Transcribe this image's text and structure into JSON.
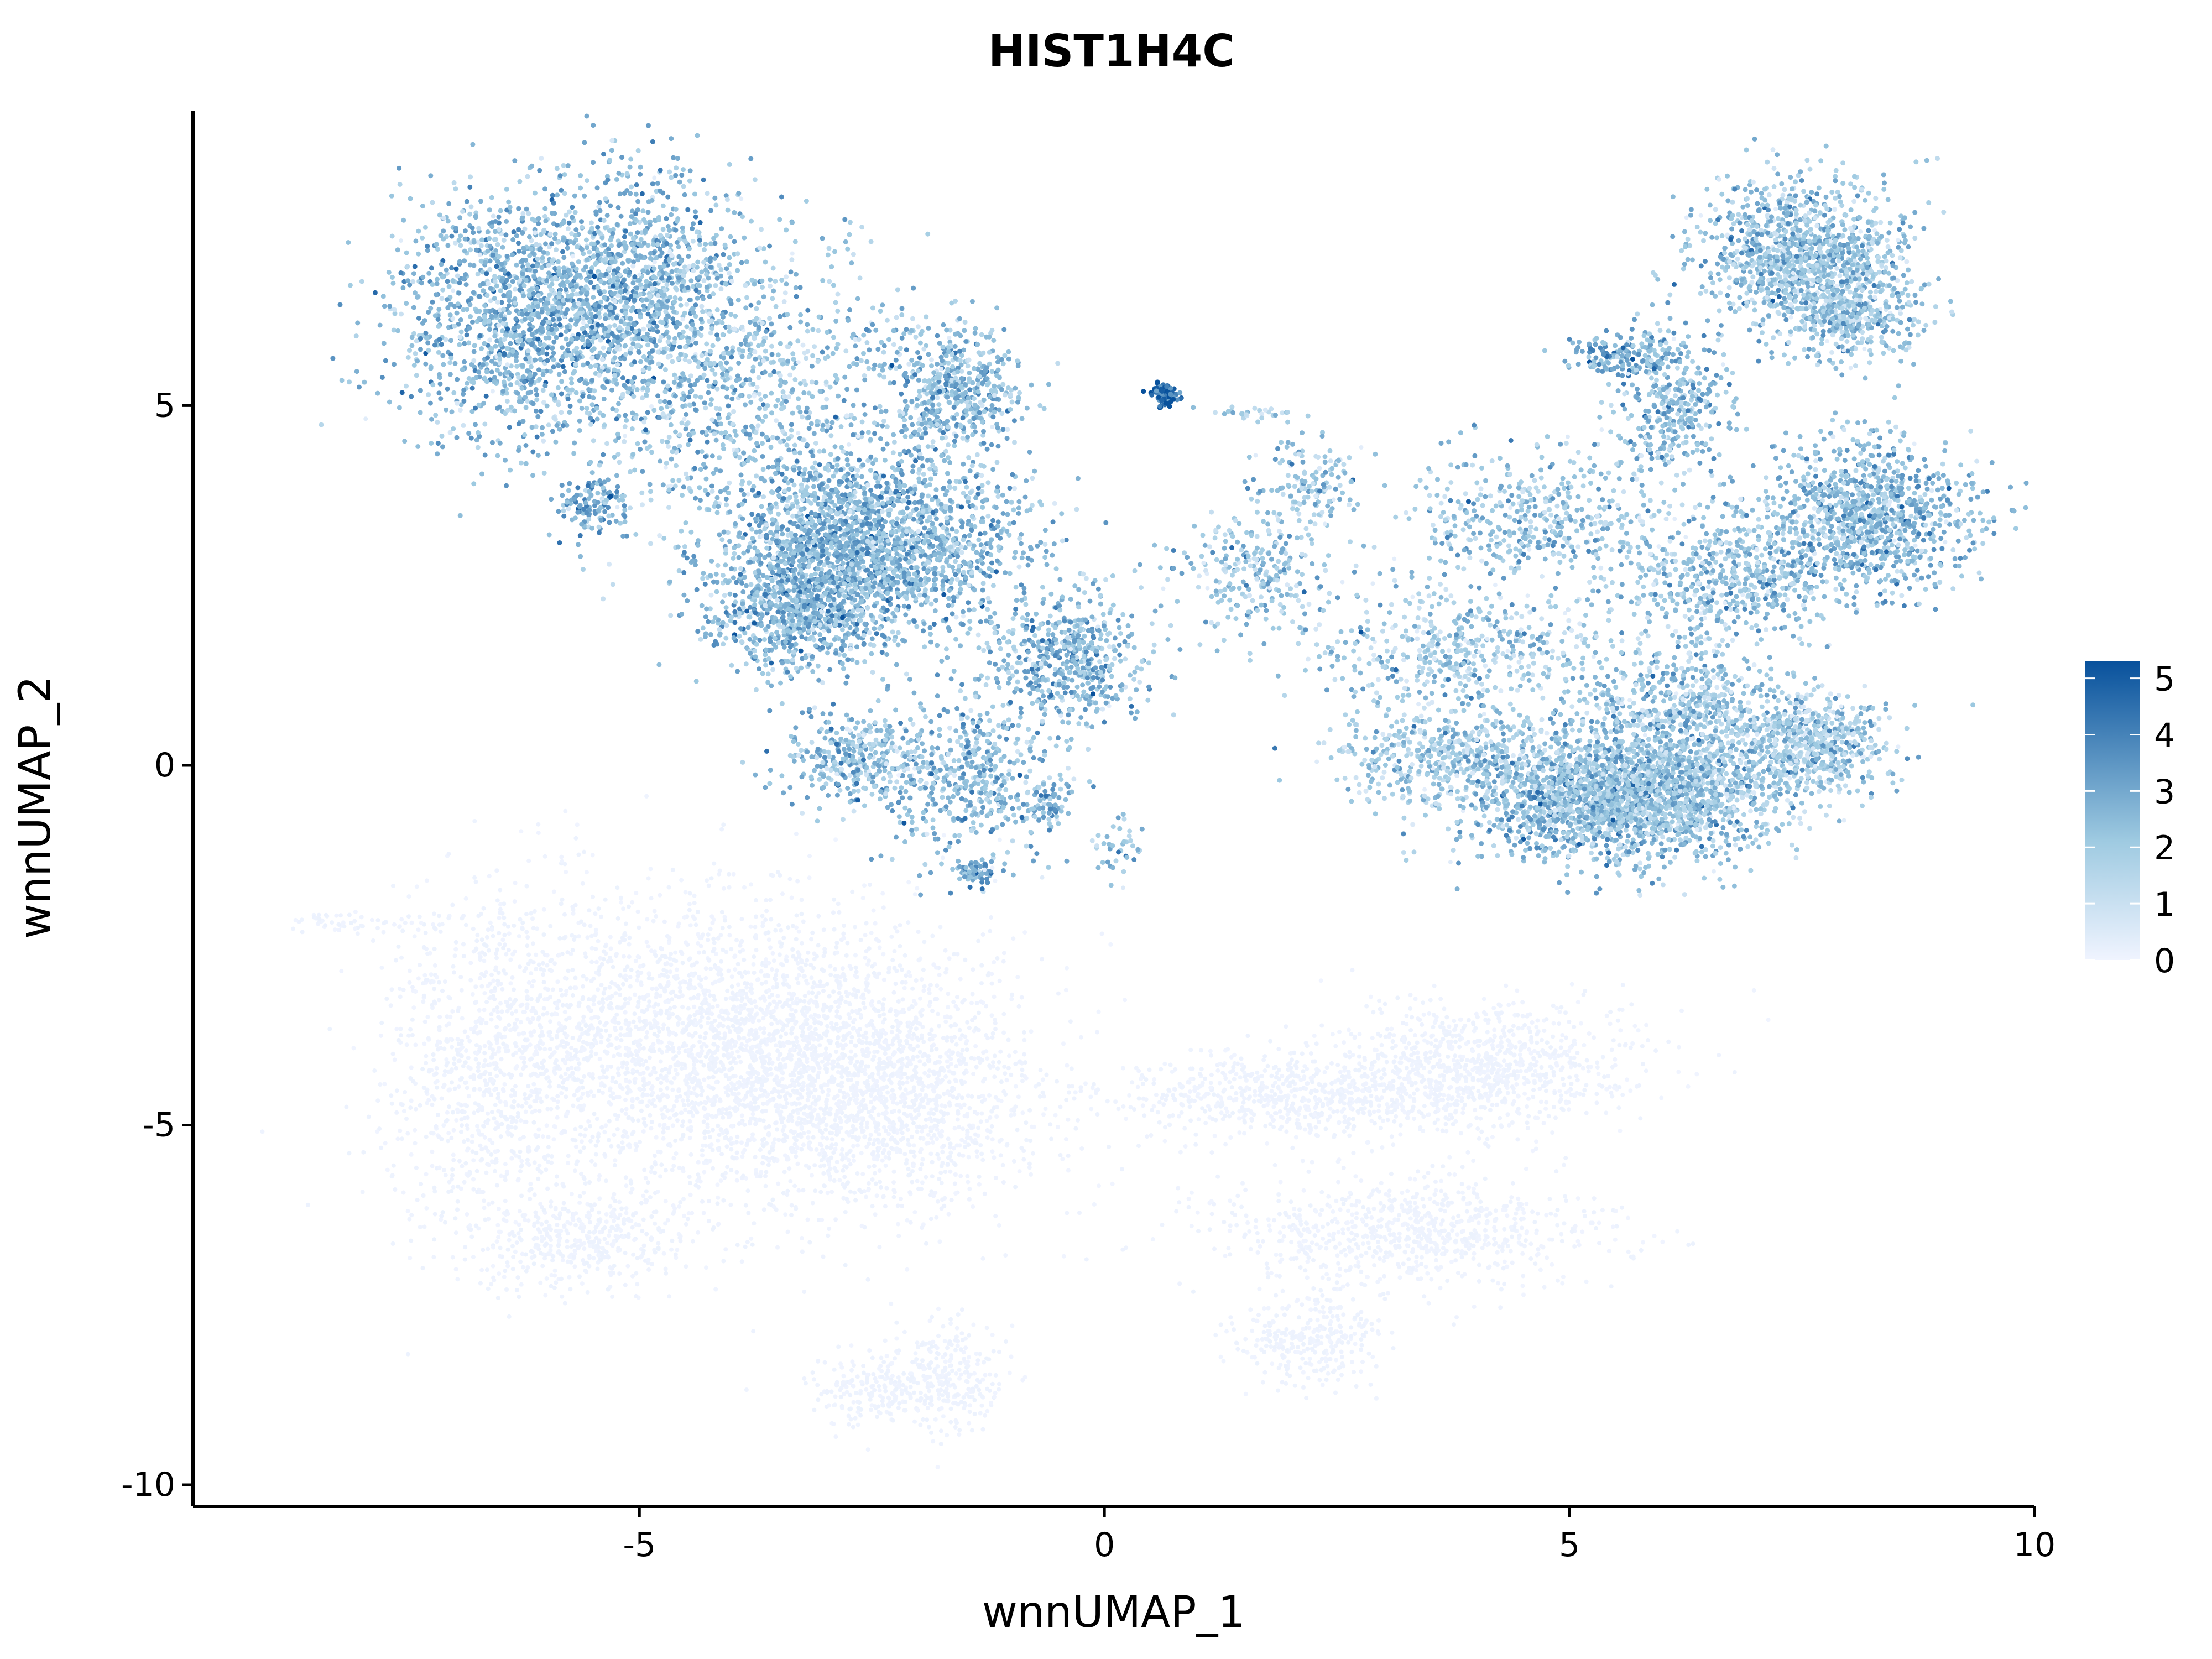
{
  "chart_data": {
    "type": "scatter",
    "title": "HIST1H4C",
    "xlabel": "wnnUMAP_1",
    "ylabel": "wnnUMAP_2",
    "xlim": [
      -9.8,
      10
    ],
    "ylim": [
      -10.3,
      9.1
    ],
    "xticks": [
      -5,
      0,
      5,
      10
    ],
    "xtick_labels": [
      "-5",
      "0",
      "5",
      "10"
    ],
    "yticks": [
      -10,
      -5,
      0,
      5
    ],
    "ytick_labels": [
      "-10",
      "-5",
      "0",
      "5"
    ],
    "grid": false,
    "legend": {
      "placement": "right",
      "type": "colorbar",
      "ticks": [
        0,
        1,
        2,
        3,
        4,
        5
      ],
      "tick_labels": [
        "0",
        "1",
        "2",
        "3",
        "4",
        "5"
      ],
      "min": 0,
      "max": 5.3
    },
    "colors": {
      "low": "#f0f4ff",
      "mid": "#9ecae1",
      "high": "#08519c"
    },
    "clusters": [
      {
        "cx": -6.2,
        "cy": 6.3,
        "sx": 0.75,
        "sy": 0.85,
        "n": 1500,
        "expr": 2.6
      },
      {
        "cx": -4.9,
        "cy": 6.6,
        "sx": 0.55,
        "sy": 0.8,
        "n": 900,
        "expr": 2.5
      },
      {
        "cx": -4.4,
        "cy": 4.8,
        "sx": 0.7,
        "sy": 0.9,
        "n": 350,
        "expr": 2.2
      },
      {
        "cx": -5.5,
        "cy": 3.6,
        "sx": 0.18,
        "sy": 0.2,
        "n": 120,
        "expr": 3.0
      },
      {
        "cx": -3.4,
        "cy": 5.4,
        "sx": 0.8,
        "sy": 0.9,
        "n": 500,
        "expr": 2.1
      },
      {
        "cx": -2.7,
        "cy": 3.1,
        "sx": 0.6,
        "sy": 0.65,
        "n": 1600,
        "expr": 2.7
      },
      {
        "cx": -3.4,
        "cy": 2.2,
        "sx": 0.45,
        "sy": 0.5,
        "n": 700,
        "expr": 2.6
      },
      {
        "cx": -1.6,
        "cy": 5.2,
        "sx": 0.35,
        "sy": 0.45,
        "n": 500,
        "expr": 2.4
      },
      {
        "cx": -1.7,
        "cy": 3.0,
        "sx": 0.5,
        "sy": 0.6,
        "n": 450,
        "expr": 2.4
      },
      {
        "cx": -2.7,
        "cy": 0.1,
        "sx": 0.35,
        "sy": 0.3,
        "n": 300,
        "expr": 2.4
      },
      {
        "cx": -1.5,
        "cy": -0.2,
        "sx": 0.5,
        "sy": 0.55,
        "n": 500,
        "expr": 2.4
      },
      {
        "cx": -1.4,
        "cy": -1.5,
        "sx": 0.1,
        "sy": 0.1,
        "n": 60,
        "expr": 3.0
      },
      {
        "cx": -0.4,
        "cy": 1.5,
        "sx": 0.45,
        "sy": 0.45,
        "n": 550,
        "expr": 2.5
      },
      {
        "cx": -0.6,
        "cy": -0.5,
        "sx": 0.12,
        "sy": 0.15,
        "n": 60,
        "expr": 2.6
      },
      {
        "cx": 0.15,
        "cy": -1.1,
        "sx": 0.15,
        "sy": 0.2,
        "n": 40,
        "expr": 2.4
      },
      {
        "cx": 0.65,
        "cy": 5.15,
        "sx": 0.08,
        "sy": 0.08,
        "n": 80,
        "expr": 4.6
      },
      {
        "cx": 1.5,
        "cy": 4.9,
        "sx": 0.25,
        "sy": 0.05,
        "n": 30,
        "expr": 1.6
      },
      {
        "cx": 1.6,
        "cy": 2.7,
        "sx": 0.4,
        "sy": 0.4,
        "n": 250,
        "expr": 2.1
      },
      {
        "cx": 2.2,
        "cy": 3.9,
        "sx": 0.3,
        "sy": 0.3,
        "n": 150,
        "expr": 2.1
      },
      {
        "cx": 7.5,
        "cy": 7.1,
        "sx": 0.55,
        "sy": 0.5,
        "n": 1100,
        "expr": 2.2
      },
      {
        "cx": 8.0,
        "cy": 6.3,
        "sx": 0.4,
        "sy": 0.35,
        "n": 400,
        "expr": 2.1
      },
      {
        "cx": 5.6,
        "cy": 5.7,
        "sx": 0.3,
        "sy": 0.15,
        "n": 150,
        "expr": 2.8
      },
      {
        "cx": 6.1,
        "cy": 5.0,
        "sx": 0.3,
        "sy": 0.5,
        "n": 350,
        "expr": 2.5
      },
      {
        "cx": 8.2,
        "cy": 3.5,
        "sx": 0.6,
        "sy": 0.55,
        "n": 1000,
        "expr": 2.4
      },
      {
        "cx": 6.8,
        "cy": 2.6,
        "sx": 0.65,
        "sy": 0.45,
        "n": 600,
        "expr": 2.2
      },
      {
        "cx": 4.6,
        "cy": 3.4,
        "sx": 0.7,
        "sy": 0.5,
        "n": 450,
        "expr": 2.1
      },
      {
        "cx": 3.8,
        "cy": 1.6,
        "sx": 0.85,
        "sy": 0.45,
        "n": 500,
        "expr": 2.0
      },
      {
        "cx": 5.2,
        "cy": -0.4,
        "sx": 0.65,
        "sy": 0.45,
        "n": 1400,
        "expr": 2.4
      },
      {
        "cx": 6.2,
        "cy": -0.3,
        "sx": 0.6,
        "sy": 0.5,
        "n": 1000,
        "expr": 2.2
      },
      {
        "cx": 3.6,
        "cy": 0.1,
        "sx": 0.6,
        "sy": 0.35,
        "n": 450,
        "expr": 2.0
      },
      {
        "cx": 6.2,
        "cy": 0.9,
        "sx": 0.55,
        "sy": 0.4,
        "n": 450,
        "expr": 2.1
      },
      {
        "cx": 7.6,
        "cy": 0.3,
        "sx": 0.4,
        "sy": 0.35,
        "n": 650,
        "expr": 1.9
      },
      {
        "cx": -4.2,
        "cy": -3.8,
        "sx": 1.3,
        "sy": 1.05,
        "n": 2600,
        "expr": 0.02
      },
      {
        "cx": -2.5,
        "cy": -4.6,
        "sx": 0.9,
        "sy": 0.8,
        "n": 1500,
        "expr": 0.02
      },
      {
        "cx": -6.6,
        "cy": -4.2,
        "sx": 0.55,
        "sy": 1.2,
        "n": 800,
        "expr": 0.02
      },
      {
        "cx": -5.6,
        "cy": -6.6,
        "sx": 0.6,
        "sy": 0.35,
        "n": 400,
        "expr": 0.02
      },
      {
        "cx": -2.5,
        "cy": -8.7,
        "sx": 0.4,
        "sy": 0.25,
        "n": 200,
        "expr": 0.02
      },
      {
        "cx": -1.7,
        "cy": -8.5,
        "sx": 0.3,
        "sy": 0.4,
        "n": 250,
        "expr": 0.02
      },
      {
        "cx": 4.0,
        "cy": -4.2,
        "sx": 0.8,
        "sy": 0.45,
        "n": 900,
        "expr": 0.02
      },
      {
        "cx": 2.0,
        "cy": -4.6,
        "sx": 1.1,
        "sy": 0.3,
        "n": 700,
        "expr": 0.02
      },
      {
        "cx": 3.2,
        "cy": -6.5,
        "sx": 1.1,
        "sy": 0.4,
        "n": 800,
        "expr": 0.02
      },
      {
        "cx": 2.2,
        "cy": -8.0,
        "sx": 0.4,
        "sy": 0.3,
        "n": 300,
        "expr": 0.02
      },
      {
        "cx": -8.0,
        "cy": -2.2,
        "sx": 0.4,
        "sy": 0.08,
        "n": 60,
        "expr": 0.02
      }
    ]
  }
}
